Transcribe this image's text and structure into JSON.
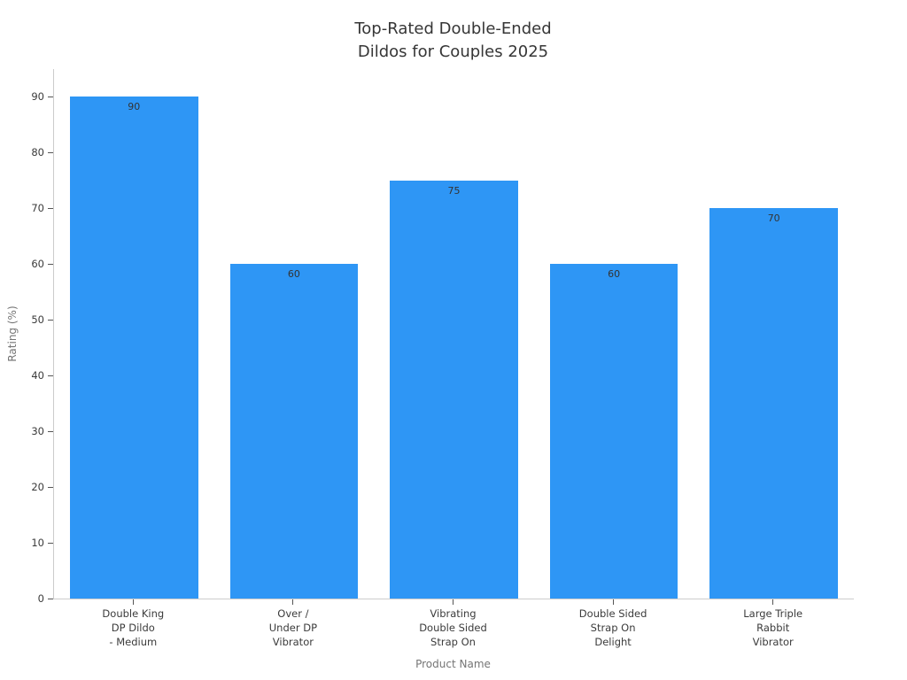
{
  "title_lines": [
    "Top-Rated Double-Ended",
    "Dildos for Couples 2025"
  ],
  "chart_data": {
    "type": "bar",
    "title": "Top-Rated Double-Ended Dildos for Couples 2025",
    "categories": [
      "Double King DP Dildo - Medium",
      "Over / Under DP Vibrator",
      "Vibrating Double Sided Strap On",
      "Double Sided Strap On Delight",
      "Large Triple Rabbit Vibrator"
    ],
    "category_lines": [
      [
        "Double King",
        "DP Dildo",
        "- Medium"
      ],
      [
        "Over /",
        "Under DP",
        "Vibrator"
      ],
      [
        "Vibrating",
        "Double Sided",
        "Strap On"
      ],
      [
        "Double Sided",
        "Strap On",
        "Delight"
      ],
      [
        "Large Triple",
        "Rabbit",
        "Vibrator"
      ]
    ],
    "values": [
      90,
      60,
      75,
      60,
      70
    ],
    "value_labels": [
      "90",
      "60",
      "75",
      "60",
      "70"
    ],
    "xlabel": "Product Name",
    "ylabel": "Rating (%)",
    "ylim": [
      0,
      95
    ],
    "yticks": [
      0,
      10,
      20,
      30,
      40,
      50,
      60,
      70,
      80,
      90
    ],
    "grid": false,
    "legend": "none",
    "bar_color": "#2E96F5",
    "axis_line_color": "#cccccc",
    "tick_mark_color": "#555555",
    "tick_label_color": "#3b3b3b",
    "axis_title_color": "#757575",
    "title_color": "#363636",
    "value_label_color": "#333333"
  }
}
